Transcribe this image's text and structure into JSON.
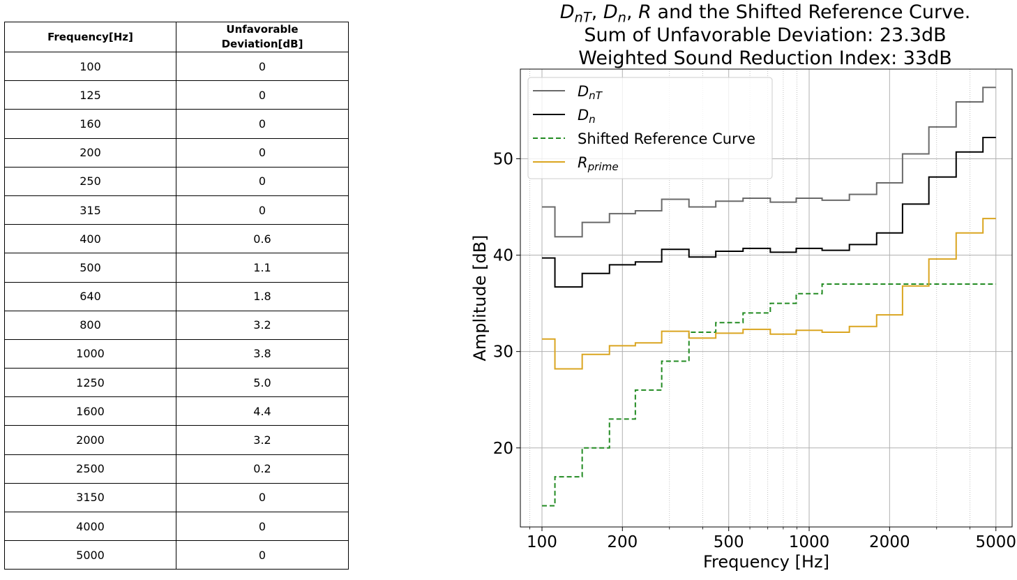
{
  "table": {
    "headers": [
      "Frequency[Hz]",
      "Unfavorable Deviation[dB]"
    ],
    "header_lines": [
      [
        "Frequency[Hz]"
      ],
      [
        "Unfavorable",
        "Deviation[dB]"
      ]
    ],
    "rows": [
      [
        "100",
        "0"
      ],
      [
        "125",
        "0"
      ],
      [
        "160",
        "0"
      ],
      [
        "200",
        "0"
      ],
      [
        "250",
        "0"
      ],
      [
        "315",
        "0"
      ],
      [
        "400",
        "0.6"
      ],
      [
        "500",
        "1.1"
      ],
      [
        "640",
        "1.8"
      ],
      [
        "800",
        "3.2"
      ],
      [
        "1000",
        "3.8"
      ],
      [
        "1250",
        "5.0"
      ],
      [
        "1600",
        "4.4"
      ],
      [
        "2000",
        "3.2"
      ],
      [
        "2500",
        "0.2"
      ],
      [
        "3150",
        "0"
      ],
      [
        "4000",
        "0"
      ],
      [
        "5000",
        "0"
      ]
    ]
  },
  "chart_data": {
    "type": "line",
    "step": "mid",
    "title_lines": [
      [
        {
          "t": "D",
          "i": true
        },
        {
          "t": "nT",
          "i": true,
          "sub": true
        },
        {
          "t": ", "
        },
        {
          "t": "D",
          "i": true
        },
        {
          "t": "n",
          "i": true,
          "sub": true
        },
        {
          "t": ", "
        },
        {
          "t": "R",
          "i": true
        },
        {
          "t": " and the Shifted Reference Curve."
        }
      ],
      [
        {
          "t": "Sum of Unfavorable Deviation: 23.3dB"
        }
      ],
      [
        {
          "t": "Weighted Sound Reduction Index: 33dB"
        }
      ]
    ],
    "xlabel": "Frequency [Hz]",
    "ylabel": "Amplitude [dB]",
    "xscale": "log",
    "xlim": [
      83,
      5750
    ],
    "ylim": [
      11.8,
      59.3
    ],
    "xticks": [
      100,
      200,
      500,
      1000,
      2000,
      5000
    ],
    "xtick_labels": [
      "100",
      "200",
      "500",
      "1000",
      "2000",
      "5000"
    ],
    "yticks": [
      20,
      30,
      40,
      50
    ],
    "ytick_labels": [
      "20",
      "30",
      "40",
      "50"
    ],
    "grid": true,
    "legend_position": "upper left",
    "x": [
      100,
      125,
      160,
      200,
      250,
      315,
      400,
      500,
      640,
      800,
      1000,
      1250,
      1600,
      2000,
      2500,
      3150,
      4000,
      5000
    ],
    "series": [
      {
        "name": "D_nT",
        "legend": [
          {
            "t": "D",
            "i": true
          },
          {
            "t": "nT",
            "i": true,
            "sub": true
          }
        ],
        "color": "#696969",
        "dash": "",
        "values": [
          45.0,
          41.9,
          43.4,
          44.3,
          44.6,
          45.8,
          45.0,
          45.6,
          45.9,
          45.5,
          45.9,
          45.7,
          46.3,
          47.5,
          50.5,
          53.3,
          55.9,
          57.4
        ]
      },
      {
        "name": "D_n",
        "legend": [
          {
            "t": "D",
            "i": true
          },
          {
            "t": "n",
            "i": true,
            "sub": true
          }
        ],
        "color": "#000000",
        "dash": "",
        "values": [
          39.7,
          36.7,
          38.1,
          39.0,
          39.3,
          40.6,
          39.8,
          40.4,
          40.7,
          40.3,
          40.7,
          40.5,
          41.1,
          42.3,
          45.3,
          48.1,
          50.7,
          52.2
        ]
      },
      {
        "name": "Shifted Reference Curve",
        "legend": [
          {
            "t": "Shifted Reference Curve"
          }
        ],
        "color": "#228b22",
        "dash": "7,4",
        "values": [
          14,
          17,
          20,
          23,
          26,
          29,
          32,
          33,
          34,
          35,
          36,
          37,
          37,
          37,
          37,
          37,
          37,
          37
        ]
      },
      {
        "name": "R_prime",
        "legend": [
          {
            "t": "R",
            "i": true
          },
          {
            "t": "prime",
            "i": true,
            "sub": true
          }
        ],
        "color": "#daa520",
        "dash": "",
        "values": [
          31.3,
          28.2,
          29.7,
          30.6,
          30.9,
          32.1,
          31.4,
          31.9,
          32.3,
          31.8,
          32.2,
          32.0,
          32.6,
          33.8,
          36.8,
          39.6,
          42.3,
          43.8
        ]
      }
    ]
  }
}
